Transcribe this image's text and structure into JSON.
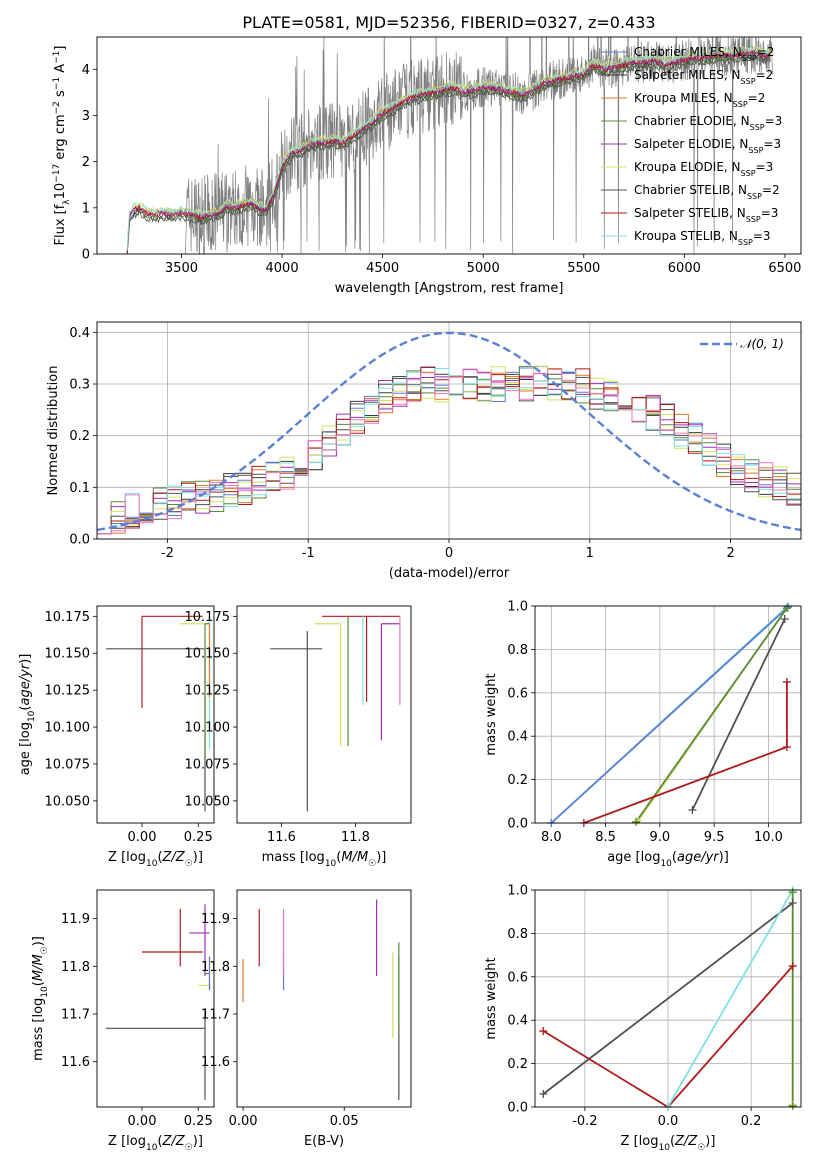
{
  "figure": {
    "title": "PLATE=0581, MJD=52356, FIBERID=0327, z=0.433"
  },
  "colors": {
    "data": "#808080",
    "gauss": "#5b80d6",
    "Chabrier MILES": "#5b7fcf",
    "Salpeter MILES": "#3a3a3a",
    "Kroupa MILES": "#e0782a",
    "Chabrier ELODIE": "#5a8a3a",
    "Salpeter ELODIE": "#a030b8",
    "Kroupa ELODIE": "#d8e060",
    "Chabrier STELIB": "#505050",
    "Salpeter STELIB": "#b01a1a",
    "Kroupa STELIB": "#80e0e0",
    "pink": "#e878c0"
  },
  "legend_spec": [
    {
      "text": "Chabrier MILES, N",
      "sub": "SSP",
      "suffix": "=2"
    },
    {
      "text": "Salpeter MILES, N",
      "sub": "SSP",
      "suffix": "=2"
    },
    {
      "text": "Kroupa MILES, N",
      "sub": "SSP",
      "suffix": "=2"
    },
    {
      "text": "Chabrier ELODIE, N",
      "sub": "SSP",
      "suffix": "=3"
    },
    {
      "text": "Salpeter ELODIE, N",
      "sub": "SSP",
      "suffix": "=3"
    },
    {
      "text": "Kroupa ELODIE, N",
      "sub": "SSP",
      "suffix": "=3"
    },
    {
      "text": "Chabrier STELIB, N",
      "sub": "SSP",
      "suffix": "=2"
    },
    {
      "text": "Salpeter STELIB, N",
      "sub": "SSP",
      "suffix": "=3"
    },
    {
      "text": "Kroupa STELIB, N",
      "sub": "SSP",
      "suffix": "=3"
    }
  ],
  "chart_data": [
    {
      "type": "line",
      "title": "PLATE=0581, MJD=52356, FIBERID=0327, z=0.433",
      "xlabel": "wavelength [Angstrom, rest frame]",
      "ylabel": "Flux [f_λ 10^-17 erg cm^-2 s^-1 A^-1]",
      "xlim": [
        3080,
        6580
      ],
      "ylim": [
        0,
        4.7
      ],
      "xticks": [
        3500,
        4000,
        4500,
        5000,
        5500,
        6000,
        6500
      ],
      "yticks": [
        0,
        1,
        2,
        3,
        4
      ],
      "legend_position": "top-right",
      "model_knots": [
        [
          3230,
          0
        ],
        [
          3240,
          0.8
        ],
        [
          3260,
          0.95
        ],
        [
          3290,
          1.0
        ],
        [
          3320,
          0.9
        ],
        [
          3360,
          0.85
        ],
        [
          3400,
          0.88
        ],
        [
          3450,
          0.85
        ],
        [
          3500,
          0.9
        ],
        [
          3550,
          0.85
        ],
        [
          3600,
          0.8
        ],
        [
          3650,
          0.85
        ],
        [
          3700,
          0.9
        ],
        [
          3720,
          1.05
        ],
        [
          3760,
          1.0
        ],
        [
          3800,
          1.05
        ],
        [
          3850,
          1.1
        ],
        [
          3880,
          1.0
        ],
        [
          3920,
          0.95
        ],
        [
          3960,
          1.3
        ],
        [
          4000,
          1.9
        ],
        [
          4050,
          2.2
        ],
        [
          4100,
          2.25
        ],
        [
          4150,
          2.4
        ],
        [
          4200,
          2.4
        ],
        [
          4250,
          2.45
        ],
        [
          4300,
          2.4
        ],
        [
          4350,
          2.55
        ],
        [
          4400,
          2.7
        ],
        [
          4450,
          2.85
        ],
        [
          4500,
          3.05
        ],
        [
          4550,
          3.15
        ],
        [
          4600,
          3.3
        ],
        [
          4650,
          3.4
        ],
        [
          4700,
          3.45
        ],
        [
          4750,
          3.5
        ],
        [
          4800,
          3.55
        ],
        [
          4850,
          3.6
        ],
        [
          4900,
          3.5
        ],
        [
          4950,
          3.55
        ],
        [
          5000,
          3.6
        ],
        [
          5050,
          3.6
        ],
        [
          5100,
          3.55
        ],
        [
          5150,
          3.5
        ],
        [
          5200,
          3.45
        ],
        [
          5250,
          3.55
        ],
        [
          5300,
          3.7
        ],
        [
          5350,
          3.75
        ],
        [
          5400,
          3.8
        ],
        [
          5450,
          3.85
        ],
        [
          5500,
          3.9
        ],
        [
          5550,
          4.1
        ],
        [
          5600,
          4.0
        ],
        [
          5650,
          4.05
        ],
        [
          5700,
          4.1
        ],
        [
          5750,
          4.15
        ],
        [
          5800,
          4.15
        ],
        [
          5850,
          4.2
        ],
        [
          5900,
          4.1
        ],
        [
          5950,
          4.15
        ],
        [
          6000,
          4.2
        ],
        [
          6050,
          4.25
        ],
        [
          6100,
          4.25
        ],
        [
          6150,
          4.3
        ],
        [
          6200,
          4.3
        ],
        [
          6250,
          4.3
        ],
        [
          6300,
          4.35
        ],
        [
          6350,
          4.35
        ],
        [
          6400,
          4.3
        ],
        [
          6430,
          4.3
        ]
      ],
      "series": [
        {
          "name": "Chabrier MILES, N_SSP=2",
          "offset": 0.02
        },
        {
          "name": "Salpeter MILES, N_SSP=2",
          "offset": -0.05
        },
        {
          "name": "Kroupa MILES, N_SSP=2",
          "offset": 0.05
        },
        {
          "name": "Chabrier ELODIE, N_SSP=3",
          "offset": -0.08
        },
        {
          "name": "Salpeter ELODIE, N_SSP=3",
          "offset": 0.0
        },
        {
          "name": "Kroupa ELODIE, N_SSP=3",
          "offset": 0.1
        },
        {
          "name": "Chabrier STELIB, N_SSP=2",
          "offset": -0.12
        },
        {
          "name": "Salpeter STELIB, N_SSP=3",
          "offset": 0.0
        },
        {
          "name": "Kroupa STELIB, N_SSP=3",
          "offset": 0.08
        }
      ]
    },
    {
      "type": "line",
      "xlabel": "(data-model)/error",
      "ylabel": "Normed distribution",
      "xlim": [
        -2.5,
        2.5
      ],
      "ylim": [
        0,
        0.42
      ],
      "xticks": [
        -2,
        -1,
        0,
        1,
        2
      ],
      "yticks": [
        0.0,
        0.1,
        0.2,
        0.3,
        0.4
      ],
      "grid": true,
      "legend": "N(0,1)",
      "legend_position": "top-right",
      "hist_knots": [
        [
          -2.5,
          0.03
        ],
        [
          -2.2,
          0.06
        ],
        [
          -1.8,
          0.08
        ],
        [
          -1.4,
          0.1
        ],
        [
          -1.0,
          0.15
        ],
        [
          -0.6,
          0.25
        ],
        [
          -0.3,
          0.3
        ],
        [
          0.0,
          0.3
        ],
        [
          0.3,
          0.3
        ],
        [
          0.6,
          0.3
        ],
        [
          0.9,
          0.3
        ],
        [
          1.2,
          0.27
        ],
        [
          1.5,
          0.24
        ],
        [
          1.8,
          0.18
        ],
        [
          2.1,
          0.13
        ],
        [
          2.5,
          0.09
        ]
      ]
    },
    {
      "type": "scatter",
      "xlabel": "Z [log10(Z/Z☉)]",
      "ylabel": "age [log10(age/yr)]",
      "xlim": [
        -0.2,
        0.32
      ],
      "ylim": [
        10.035,
        10.182
      ],
      "xticks": [
        0.0,
        0.25
      ],
      "yticks": [
        10.05,
        10.075,
        10.1,
        10.125,
        10.15,
        10.175
      ],
      "points": [
        {
          "series": "Salpeter STELIB",
          "x": 0.0,
          "xerr": [
            0.0,
            0.27
          ],
          "y": 10.175,
          "yerr": [
            0.062,
            0.0
          ]
        },
        {
          "series": "Chabrier STELIB",
          "x": 0.28,
          "xerr": [
            0.44,
            0.0
          ],
          "y": 10.153,
          "yerr": [
            0.11,
            0.0
          ]
        },
        {
          "series": "Kroupa ELODIE",
          "x": 0.17,
          "xerr": [
            0.0,
            0.13
          ],
          "y": 10.17,
          "yerr": [
            0.0,
            0.0
          ]
        },
        {
          "series": "Kroupa STELIB",
          "x": 0.3,
          "xerr": [
            0.0,
            0.0
          ],
          "y": 10.175,
          "yerr": [
            0.09,
            0.0
          ]
        },
        {
          "series": "Kroupa MILES",
          "x": 0.3,
          "xerr": [
            0.0,
            0.0
          ],
          "y": 10.17,
          "yerr": [
            0.05,
            0.0
          ]
        },
        {
          "series": "Chabrier ELODIE",
          "x": 0.28,
          "xerr": [
            0.0,
            0.02
          ],
          "y": 10.17,
          "yerr": [
            0.09,
            0.0
          ]
        }
      ]
    },
    {
      "type": "scatter",
      "xlabel": "mass [log10(M/M☉)]",
      "xlim": [
        11.48,
        11.95
      ],
      "ylim": [
        10.035,
        10.182
      ],
      "xticks": [
        11.6,
        11.8
      ],
      "yticks": [
        10.05,
        10.075,
        10.1,
        10.125,
        10.15,
        10.175
      ],
      "points": [
        {
          "series": "Chabrier STELIB",
          "x": 11.67,
          "xerr": [
            0.1,
            0.04
          ],
          "y": 10.153,
          "yerr": [
            0.11,
            0.012
          ]
        },
        {
          "series": "Kroupa ELODIE",
          "x": 11.76,
          "xerr": [
            0.07,
            0.0
          ],
          "y": 10.17,
          "yerr": [
            0.083,
            0.0
          ]
        },
        {
          "series": "Chabrier ELODIE",
          "x": 11.78,
          "xerr": [
            0.0,
            0.0
          ],
          "y": 10.17,
          "yerr": [
            0.083,
            0.005
          ]
        },
        {
          "series": "Salpeter STELIB",
          "x": 11.83,
          "xerr": [
            0.12,
            0.09
          ],
          "y": 10.175,
          "yerr": [
            0.058,
            0.0
          ]
        },
        {
          "series": "Salpeter ELODIE",
          "x": 11.87,
          "xerr": [
            0.0,
            0.05
          ],
          "y": 10.17,
          "yerr": [
            0.079,
            0.0
          ]
        },
        {
          "series": "pink",
          "x": 11.92,
          "xerr": [
            0.0,
            0.0
          ],
          "y": 10.175,
          "yerr": [
            0.06,
            0.0
          ]
        },
        {
          "series": "Kroupa STELIB",
          "x": 11.82,
          "xerr": [
            0.0,
            0.0
          ],
          "y": 10.175,
          "yerr": [
            0.06,
            0.0
          ]
        }
      ]
    },
    {
      "type": "line",
      "xlabel": "age [log10(age/yr)]",
      "ylabel": "mass weight",
      "xlim": [
        7.85,
        10.3
      ],
      "ylim": [
        0,
        1
      ],
      "xticks": [
        8.0,
        8.5,
        9.0,
        9.5,
        10.0
      ],
      "yticks": [
        0.0,
        0.2,
        0.4,
        0.6,
        0.8,
        1.0
      ],
      "grid": true,
      "series": [
        {
          "name": "Kroupa STELIB",
          "points": [
            [
              8.0,
              0.0
            ],
            [
              10.18,
              1.0
            ]
          ]
        },
        {
          "name": "Chabrier MILES",
          "points": [
            [
              8.0,
              0.0
            ],
            [
              10.18,
              0.995
            ]
          ]
        },
        {
          "name": "Kroupa ELODIE",
          "points": [
            [
              8.8,
              0.01
            ],
            [
              10.17,
              0.99
            ]
          ]
        },
        {
          "name": "Chabrier ELODIE",
          "points": [
            [
              8.78,
              0.005
            ],
            [
              10.17,
              0.99
            ]
          ]
        },
        {
          "name": "Chabrier STELIB",
          "points": [
            [
              9.3,
              0.06
            ],
            [
              10.15,
              0.94
            ]
          ]
        },
        {
          "name": "Salpeter STELIB",
          "points": [
            [
              8.3,
              0.0
            ],
            [
              10.17,
              0.35
            ],
            [
              10.17,
              0.65
            ]
          ]
        }
      ]
    },
    {
      "type": "scatter",
      "xlabel": "Z [log10(Z/Z☉)]",
      "ylabel": "mass [log10(M/M☉)]",
      "xlim": [
        -0.2,
        0.32
      ],
      "ylim": [
        11.505,
        11.96
      ],
      "xticks": [
        0.0,
        0.25
      ],
      "yticks": [
        11.6,
        11.7,
        11.8,
        11.9
      ],
      "points": [
        {
          "series": "Chabrier STELIB",
          "x": 0.28,
          "xerr": [
            0.44,
            0.0
          ],
          "y": 11.67,
          "yerr": [
            0.15,
            0.04
          ]
        },
        {
          "series": "Salpeter STELIB",
          "x": 0.17,
          "xerr": [
            0.17,
            0.1
          ],
          "y": 11.83,
          "yerr": [
            0.03,
            0.09
          ]
        },
        {
          "series": "Salpeter ELODIE",
          "x": 0.28,
          "xerr": [
            0.07,
            0.02
          ],
          "y": 11.87,
          "yerr": [
            0.09,
            0.06
          ]
        },
        {
          "series": "Chabrier ELODIE",
          "x": 0.28,
          "xerr": [
            0.0,
            0.02
          ],
          "y": 11.785,
          "yerr": [
            0.0,
            0.0
          ]
        },
        {
          "series": "Kroupa ELODIE",
          "x": 0.28,
          "xerr": [
            0.03,
            0.02
          ],
          "y": 11.76,
          "yerr": [
            0.0,
            0.0
          ]
        },
        {
          "series": "Kroupa MILES",
          "x": 0.3,
          "xerr": [
            0.0,
            0.0
          ],
          "y": 11.8,
          "yerr": [
            0.05,
            0.02
          ]
        },
        {
          "series": "Chabrier MILES",
          "x": 0.3,
          "xerr": [
            0.0,
            0.0
          ],
          "y": 11.8,
          "yerr": [
            0.05,
            0.02
          ]
        }
      ]
    },
    {
      "type": "scatter",
      "xlabel": "E(B-V)",
      "xlim": [
        -0.003,
        0.083
      ],
      "ylim": [
        11.505,
        11.96
      ],
      "xticks": [
        0.0,
        0.05
      ],
      "yticks": [
        11.6,
        11.7,
        11.8,
        11.9
      ],
      "points": [
        {
          "series": "Kroupa MILES",
          "x": 0.0,
          "y": 11.77,
          "yerr": [
            0.045,
            0.045
          ]
        },
        {
          "series": "Salpeter STELIB",
          "x": 0.008,
          "y": 11.86,
          "yerr": [
            0.06,
            0.06
          ]
        },
        {
          "series": "Chabrier MILES",
          "x": 0.02,
          "y": 11.79,
          "yerr": [
            0.04,
            0.04
          ]
        },
        {
          "series": "pink",
          "x": 0.02,
          "y": 11.85,
          "yerr": [
            0.07,
            0.07
          ]
        },
        {
          "series": "Salpeter ELODIE",
          "x": 0.066,
          "y": 11.86,
          "yerr": [
            0.08,
            0.08
          ]
        },
        {
          "series": "Kroupa ELODIE",
          "x": 0.074,
          "y": 11.74,
          "yerr": [
            0.09,
            0.09
          ]
        },
        {
          "series": "Chabrier STELIB",
          "x": 0.077,
          "y": 11.67,
          "yerr": [
            0.15,
            0.15
          ]
        },
        {
          "series": "Chabrier ELODIE",
          "x": 0.077,
          "y": 11.76,
          "yerr": [
            0.09,
            0.09
          ]
        }
      ]
    },
    {
      "type": "line",
      "xlabel": "Z [log10(Z/Z☉)]",
      "ylabel": "mass weight",
      "xlim": [
        -0.32,
        0.32
      ],
      "ylim": [
        0,
        1
      ],
      "xticks": [
        -0.2,
        0.0,
        0.2
      ],
      "yticks": [
        0.0,
        0.2,
        0.4,
        0.6,
        0.8,
        1.0
      ],
      "grid": true,
      "series": [
        {
          "name": "Chabrier STELIB",
          "points": [
            [
              -0.3,
              0.06
            ],
            [
              0.3,
              0.94
            ]
          ]
        },
        {
          "name": "Salpeter STELIB",
          "points": [
            [
              -0.3,
              0.35
            ],
            [
              0.0,
              0.0
            ],
            [
              0.3,
              0.65
            ]
          ]
        },
        {
          "name": "Kroupa STELIB",
          "points": [
            [
              0.0,
              0.0
            ],
            [
              0.3,
              1.0
            ]
          ]
        },
        {
          "name": "Kroupa ELODIE",
          "points": [
            [
              0.3,
              0.01
            ],
            [
              0.3,
              0.99
            ]
          ]
        },
        {
          "name": "Chabrier ELODIE",
          "points": [
            [
              0.3,
              0.005
            ],
            [
              0.3,
              0.99
            ]
          ]
        }
      ]
    }
  ]
}
